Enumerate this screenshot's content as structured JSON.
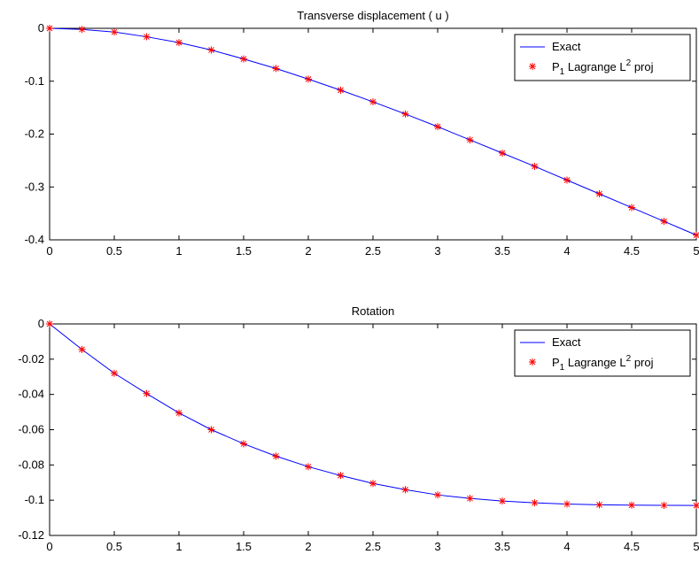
{
  "colors": {
    "exact_line": "#0000ff",
    "marker": "#ff0000",
    "axes": "#000000",
    "background": "#ffffff"
  },
  "chart_data": [
    {
      "type": "line",
      "title": "Transverse displacement ( u )",
      "xlabel": "",
      "ylabel": "",
      "xlim": [
        0,
        5
      ],
      "ylim": [
        -0.4,
        0
      ],
      "x_ticks": [
        0,
        0.5,
        1,
        1.5,
        2,
        2.5,
        3,
        3.5,
        4,
        4.5,
        5
      ],
      "x_tick_labels": [
        "0",
        "0.5",
        "1",
        "1.5",
        "2",
        "2.5",
        "3",
        "3.5",
        "4",
        "4.5",
        "5"
      ],
      "y_ticks": [
        0,
        -0.1,
        -0.2,
        -0.3,
        -0.4
      ],
      "y_tick_labels": [
        "0",
        "-0.1",
        "-0.2",
        "-0.3",
        "-0.4"
      ],
      "grid": false,
      "legend_position": "top-right",
      "legend": {
        "exact": "Exact",
        "proj_prefix": "P",
        "proj_sub": "1",
        "proj_middle": " Lagrange L",
        "proj_sup": "2",
        "proj_suffix": " proj"
      },
      "series": [
        {
          "name": "Exact",
          "style": "solid-line",
          "x": [
            0,
            0.25,
            0.5,
            0.75,
            1,
            1.25,
            1.5,
            1.75,
            2,
            2.25,
            2.5,
            2.75,
            3,
            3.25,
            3.5,
            3.75,
            4,
            4.25,
            4.5,
            4.75,
            5
          ],
          "y": [
            0,
            -0.002,
            -0.007,
            -0.016,
            -0.027,
            -0.041,
            -0.058,
            -0.076,
            -0.096,
            -0.117,
            -0.139,
            -0.162,
            -0.186,
            -0.211,
            -0.236,
            -0.261,
            -0.287,
            -0.313,
            -0.339,
            -0.365,
            -0.391
          ]
        },
        {
          "name": "P1 Lagrange L2 proj",
          "style": "asterisk-markers",
          "x": [
            0,
            0.25,
            0.5,
            0.75,
            1,
            1.25,
            1.5,
            1.75,
            2,
            2.25,
            2.5,
            2.75,
            3,
            3.25,
            3.5,
            3.75,
            4,
            4.25,
            4.5,
            4.75,
            5
          ],
          "y": [
            0,
            -0.002,
            -0.007,
            -0.016,
            -0.027,
            -0.041,
            -0.058,
            -0.076,
            -0.096,
            -0.117,
            -0.139,
            -0.162,
            -0.186,
            -0.211,
            -0.236,
            -0.261,
            -0.287,
            -0.313,
            -0.339,
            -0.365,
            -0.391
          ]
        }
      ]
    },
    {
      "type": "line",
      "title": "Rotation",
      "xlabel": "",
      "ylabel": "",
      "xlim": [
        0,
        5
      ],
      "ylim": [
        -0.12,
        0
      ],
      "x_ticks": [
        0,
        0.5,
        1,
        1.5,
        2,
        2.5,
        3,
        3.5,
        4,
        4.5,
        5
      ],
      "x_tick_labels": [
        "0",
        "0.5",
        "1",
        "1.5",
        "2",
        "2.5",
        "3",
        "3.5",
        "4",
        "4.5",
        "5"
      ],
      "y_ticks": [
        0,
        -0.02,
        -0.04,
        -0.06,
        -0.08,
        -0.1,
        -0.12
      ],
      "y_tick_labels": [
        "0",
        "-0.02",
        "-0.04",
        "-0.06",
        "-0.08",
        "-0.1",
        "-0.12"
      ],
      "grid": false,
      "legend_position": "top-right",
      "legend": {
        "exact": "Exact",
        "proj_prefix": "P",
        "proj_sub": "1",
        "proj_middle": " Lagrange L",
        "proj_sup": "2",
        "proj_suffix": " proj"
      },
      "series": [
        {
          "name": "Exact",
          "style": "solid-line",
          "x": [
            0,
            0.25,
            0.5,
            0.75,
            1,
            1.25,
            1.5,
            1.75,
            2,
            2.25,
            2.5,
            2.75,
            3,
            3.25,
            3.5,
            3.75,
            4,
            4.25,
            4.5,
            4.75,
            5
          ],
          "y": [
            0,
            -0.0145,
            -0.028,
            -0.0395,
            -0.0505,
            -0.06,
            -0.068,
            -0.075,
            -0.081,
            -0.086,
            -0.0905,
            -0.094,
            -0.097,
            -0.099,
            -0.1005,
            -0.1015,
            -0.1022,
            -0.1026,
            -0.1028,
            -0.1029,
            -0.103
          ]
        },
        {
          "name": "P1 Lagrange L2 proj",
          "style": "asterisk-markers",
          "x": [
            0,
            0.25,
            0.5,
            0.75,
            1,
            1.25,
            1.5,
            1.75,
            2,
            2.25,
            2.5,
            2.75,
            3,
            3.25,
            3.5,
            3.75,
            4,
            4.25,
            4.5,
            4.75,
            5
          ],
          "y": [
            0,
            -0.0145,
            -0.028,
            -0.0395,
            -0.0505,
            -0.06,
            -0.068,
            -0.075,
            -0.081,
            -0.086,
            -0.0905,
            -0.094,
            -0.097,
            -0.099,
            -0.1005,
            -0.1015,
            -0.1022,
            -0.1026,
            -0.1028,
            -0.1029,
            -0.103
          ]
        }
      ]
    }
  ]
}
